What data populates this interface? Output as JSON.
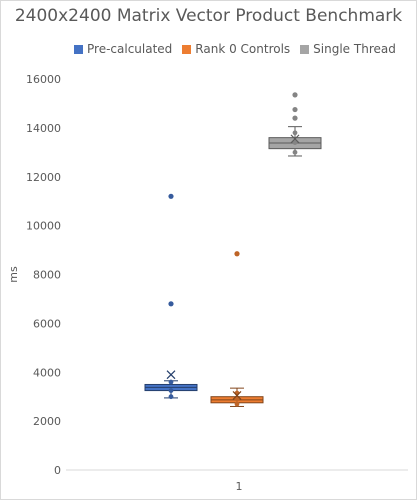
{
  "chart_data": {
    "type": "box",
    "title": "2400x2400 Matrix Vector Product Benchmark",
    "xlabel": "",
    "ylabel": "ms",
    "categories": [
      "1"
    ],
    "ylim": [
      0,
      16000
    ],
    "yticks": [
      0,
      2000,
      4000,
      6000,
      8000,
      10000,
      12000,
      14000,
      16000
    ],
    "ytick_labels": [
      "0",
      "2000",
      "4000",
      "6000",
      "8000",
      "10000",
      "12000",
      "14000",
      "16000"
    ],
    "grid": false,
    "legend_position": "top",
    "series": [
      {
        "name": "Pre-calculated",
        "color": "#4472C4",
        "whisker_low": 2950,
        "q1": 3250,
        "median": 3380,
        "q3": 3500,
        "whisker_high": 3650,
        "mean": 3900,
        "points": [
          3000,
          3250,
          3600
        ],
        "outliers": [
          6800,
          11200
        ]
      },
      {
        "name": "Rank 0 Controls",
        "color": "#ED7D31",
        "whisker_low": 2600,
        "q1": 2750,
        "median": 2870,
        "q3": 3000,
        "whisker_high": 3350,
        "mean": 3050,
        "points": [
          2700,
          2900,
          3150
        ],
        "outliers": [
          8850
        ]
      },
      {
        "name": "Single Thread",
        "color": "#A5A5A5",
        "whisker_low": 12850,
        "q1": 13150,
        "median": 13380,
        "q3": 13600,
        "whisker_high": 14050,
        "mean": 13550,
        "points": [
          13000,
          13400,
          13800
        ],
        "outliers": [
          14400,
          14750,
          15350
        ]
      }
    ]
  }
}
